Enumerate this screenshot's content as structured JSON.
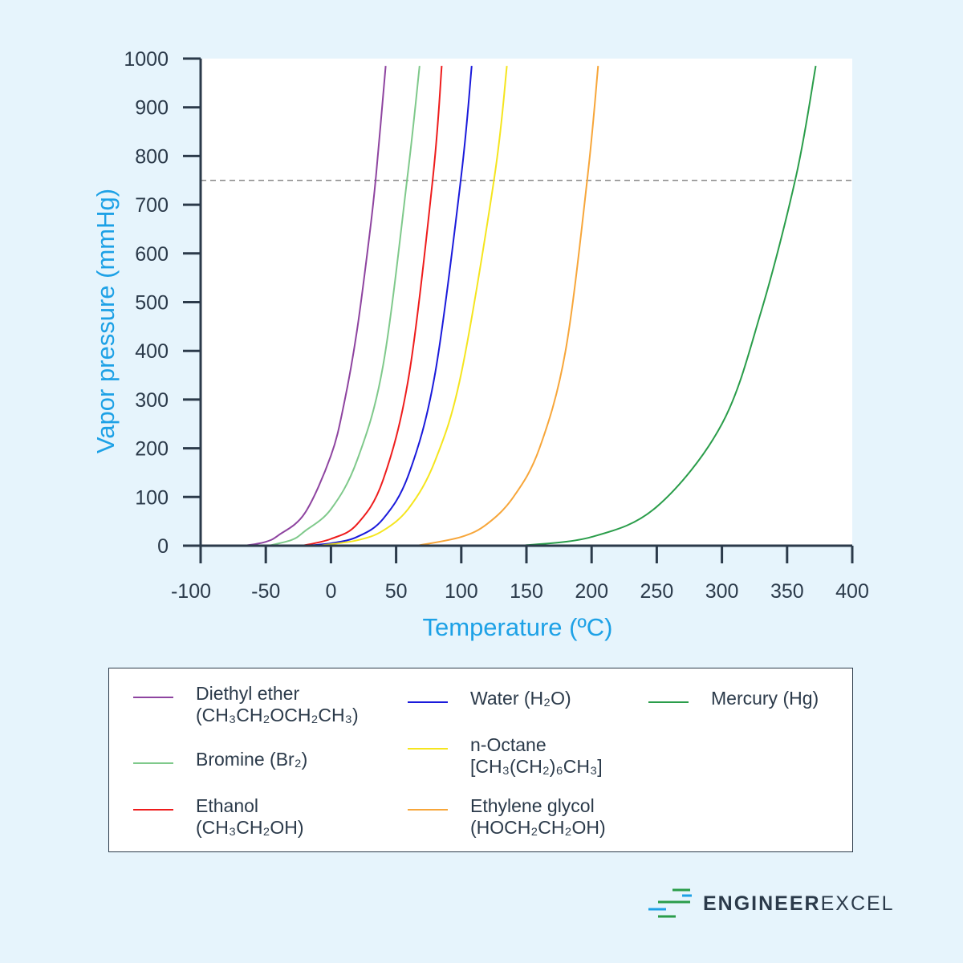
{
  "chart_data": {
    "type": "line",
    "xlabel": "Temperature (ºC)",
    "ylabel": "Vapor pressure (mmHg)",
    "xlim": [
      -100,
      400
    ],
    "ylim": [
      0,
      1000
    ],
    "xticks": [
      "-100",
      "-50",
      "0",
      "50",
      "100",
      "150",
      "200",
      "250",
      "300",
      "350",
      "400"
    ],
    "yticks": [
      "0",
      "100",
      "200",
      "300",
      "400",
      "500",
      "600",
      "700",
      "800",
      "900",
      "1000"
    ],
    "grid": false,
    "reference_line": {
      "y": 750,
      "style": "dashed",
      "color": "#888888"
    },
    "legend_position": "bottom",
    "series": [
      {
        "name": "Diethyl ether",
        "formula": "(CH₃CH₂OCH₂CH₃)",
        "color": "#8e44a0",
        "points": [
          [
            -66,
            0
          ],
          [
            -50,
            8
          ],
          [
            -40,
            22
          ],
          [
            -20,
            67
          ],
          [
            0,
            185
          ],
          [
            10,
            291
          ],
          [
            20,
            442
          ],
          [
            30,
            647
          ],
          [
            34.6,
            760
          ],
          [
            42,
            985
          ]
        ]
      },
      {
        "name": "Bromine (Br₂)",
        "formula": "",
        "color": "#7fc98b",
        "points": [
          [
            -48,
            0
          ],
          [
            -30,
            12
          ],
          [
            -20,
            30
          ],
          [
            0,
            75
          ],
          [
            20,
            175
          ],
          [
            40,
            370
          ],
          [
            58.8,
            760
          ],
          [
            68,
            985
          ]
        ]
      },
      {
        "name": "Ethanol",
        "formula": "(CH₃CH₂OH)",
        "color": "#ee1c1c",
        "points": [
          [
            -22,
            0
          ],
          [
            0,
            14
          ],
          [
            20,
            44
          ],
          [
            40,
            135
          ],
          [
            60,
            352
          ],
          [
            78.4,
            760
          ],
          [
            85,
            985
          ]
        ]
      },
      {
        "name": "Water (H₂O)",
        "formula": "",
        "color": "#1a1adb",
        "points": [
          [
            -20,
            0
          ],
          [
            0,
            5
          ],
          [
            20,
            18
          ],
          [
            40,
            55
          ],
          [
            60,
            149
          ],
          [
            80,
            355
          ],
          [
            100,
            760
          ],
          [
            108,
            985
          ]
        ]
      },
      {
        "name": "n-Octane",
        "formula": "[CH₃(CH₂)₆CH₃]",
        "color": "#f5e51e",
        "points": [
          [
            -10,
            0
          ],
          [
            20,
            11
          ],
          [
            40,
            31
          ],
          [
            60,
            78
          ],
          [
            80,
            175
          ],
          [
            100,
            354
          ],
          [
            125.6,
            760
          ],
          [
            135,
            985
          ]
        ]
      },
      {
        "name": "Ethylene glycol",
        "formula": "(HOCH₂CH₂OH)",
        "color": "#f7a63a",
        "points": [
          [
            66,
            0
          ],
          [
            100,
            18
          ],
          [
            120,
            45
          ],
          [
            140,
            100
          ],
          [
            160,
            200
          ],
          [
            180,
            400
          ],
          [
            197,
            760
          ],
          [
            205,
            985
          ]
        ]
      },
      {
        "name": "Mercury (Hg)",
        "formula": "",
        "color": "#2a9d4a",
        "points": [
          [
            145,
            0
          ],
          [
            200,
            18
          ],
          [
            250,
            80
          ],
          [
            300,
            250
          ],
          [
            330,
            480
          ],
          [
            357,
            760
          ],
          [
            372,
            985
          ]
        ]
      }
    ]
  },
  "logo": {
    "bold": "ENGINEER",
    "light": "EXCEL"
  }
}
